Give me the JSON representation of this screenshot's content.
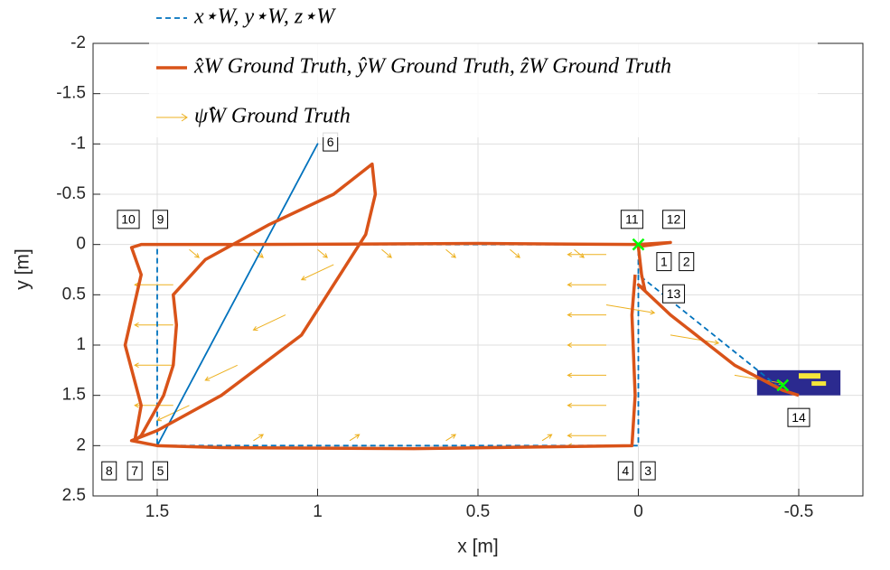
{
  "chart_data": {
    "type": "trajectory",
    "xlabel": "x [m]",
    "ylabel": "y [m]",
    "xlim": [
      -0.7,
      1.7
    ],
    "ylim": [
      -2,
      2.5
    ],
    "x_reversed": true,
    "y_reversed": true,
    "xticks": [
      1.5,
      1,
      0.5,
      0,
      -0.5
    ],
    "yticks": [
      -2,
      -1.5,
      -1,
      -0.5,
      0,
      0.5,
      1,
      1.5,
      2,
      2.5
    ],
    "grid": true,
    "legend": "top-left",
    "series": [
      {
        "name": "x⋆W, y⋆W, z⋆W",
        "color": "#0072bd",
        "style": "dashed",
        "x": [
          0,
          0,
          1.4,
          1.5,
          1.5,
          1,
          1.5,
          1.5,
          0,
          0,
          -0.45
        ],
        "values": [
          0.3,
          2,
          2,
          2,
          2,
          -1,
          2,
          0,
          0,
          0.3,
          1.45
        ]
      },
      {
        "name": "x̂W Ground Truth, ŷW Ground Truth, ẑW Ground Truth",
        "color": "#d95319",
        "style": "solid",
        "x": [
          0.01,
          0.02,
          0.01,
          0.02,
          0.7,
          1.3,
          1.5,
          1.58,
          1.5,
          1.3,
          1.05,
          0.95,
          0.85,
          0.82,
          0.83,
          0.95,
          1.15,
          1.35,
          1.45,
          1.44,
          1.45,
          1.48,
          1.55,
          1.57,
          1.55,
          1.6,
          1.55,
          1.58,
          1.55,
          1.2,
          0.5,
          0,
          -0.1,
          0,
          -0.01,
          -0.02,
          0,
          -0.1,
          -0.3,
          -0.45,
          -0.5
        ],
        "values": [
          0.3,
          0.7,
          1.5,
          2,
          2.03,
          2.02,
          2,
          1.95,
          1.85,
          1.5,
          0.9,
          0.4,
          -0.1,
          -0.5,
          -0.8,
          -0.5,
          -0.2,
          0.15,
          0.5,
          0.8,
          1.2,
          1.5,
          1.9,
          1.95,
          1.6,
          1,
          0.3,
          0.03,
          0,
          0,
          -0.01,
          0,
          -0.02,
          0.02,
          0.3,
          0.45,
          0.4,
          0.7,
          1.2,
          1.45,
          1.5
        ]
      }
    ],
    "yaw": {
      "name": "ψ̂W Ground Truth",
      "color": "#edb120",
      "x": [
        1.4,
        1.2,
        1.0,
        0.8,
        0.6,
        0.4,
        0.2,
        0.1,
        0.1,
        0.1,
        0.1,
        0.1,
        0.1,
        0.1,
        0.1,
        0.3,
        0.6,
        0.9,
        1.2,
        1.45,
        1.45,
        1.45,
        1.45,
        1.4,
        1.25,
        1.1,
        0.95,
        0.1,
        -0.1,
        -0.3
      ],
      "values": [
        0.05,
        0.05,
        0.05,
        0.05,
        0.05,
        0.05,
        0.05,
        0.1,
        0.4,
        0.7,
        1.0,
        1.3,
        1.6,
        1.9,
        2.0,
        1.95,
        1.95,
        1.95,
        1.95,
        0.4,
        0.8,
        1.2,
        1.6,
        1.6,
        1.2,
        0.7,
        0.2,
        0.6,
        0.9,
        1.3
      ],
      "u": [
        -0.03,
        -0.03,
        -0.03,
        -0.03,
        -0.03,
        -0.03,
        -0.03,
        0.12,
        0.12,
        0.12,
        0.12,
        0.12,
        0.12,
        0.12,
        0.12,
        -0.03,
        -0.03,
        -0.03,
        -0.03,
        0.12,
        0.12,
        0.12,
        0.12,
        0.1,
        0.1,
        0.1,
        0.1,
        -0.15,
        -0.15,
        -0.15
      ],
      "v": [
        0.08,
        0.08,
        0.08,
        0.08,
        0.08,
        0.08,
        0.08,
        0,
        0,
        0,
        0,
        0,
        0,
        0,
        0,
        -0.06,
        -0.06,
        -0.06,
        -0.06,
        0,
        0,
        0,
        0,
        0.15,
        0.15,
        0.15,
        0.15,
        0.08,
        0.08,
        0.08
      ]
    },
    "markers": {
      "color": "#00ff00",
      "x": [
        0,
        -0.45
      ],
      "values": [
        0,
        1.4
      ]
    },
    "annotations": [
      {
        "label": "10",
        "x": 1.59,
        "y": -0.25
      },
      {
        "label": "9",
        "x": 1.49,
        "y": -0.25
      },
      {
        "label": "6",
        "x": 0.96,
        "y": -1.02
      },
      {
        "label": "11",
        "x": 0.02,
        "y": -0.25
      },
      {
        "label": "12",
        "x": -0.11,
        "y": -0.25
      },
      {
        "label": "1",
        "x": -0.08,
        "y": 0.17
      },
      {
        "label": "2",
        "x": -0.15,
        "y": 0.17
      },
      {
        "label": "13",
        "x": -0.11,
        "y": 0.49
      },
      {
        "label": "14",
        "x": -0.5,
        "y": 1.72
      },
      {
        "label": "4",
        "x": 0.04,
        "y": 2.25
      },
      {
        "label": "3",
        "x": -0.03,
        "y": 2.25
      },
      {
        "label": "8",
        "x": 1.65,
        "y": 2.25
      },
      {
        "label": "7",
        "x": 1.57,
        "y": 2.25
      },
      {
        "label": "5",
        "x": 1.49,
        "y": 2.25
      }
    ]
  }
}
